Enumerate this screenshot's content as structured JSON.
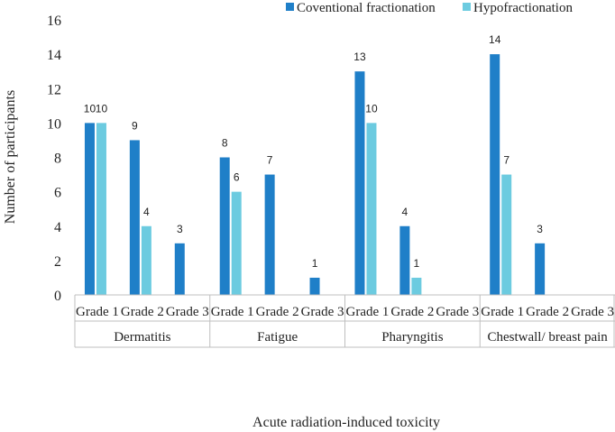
{
  "chart_data": {
    "type": "bar",
    "title": "",
    "xlabel": "Acute radiation-induced toxicity",
    "ylabel": "Number of participants",
    "ylim": [
      0,
      16
    ],
    "yticks": [
      "0",
      "2",
      "4",
      "6",
      "8",
      "10",
      "12",
      "14",
      "16"
    ],
    "grid": false,
    "legend_position": "top-right",
    "groups": [
      "Dermatitis",
      "Fatigue",
      "Pharyngitis",
      "Chestwall/ breast pain"
    ],
    "categories": [
      "Grade 1",
      "Grade 2",
      "Grade 3"
    ],
    "series": [
      {
        "name": "Coventional fractionation",
        "color": "#1f7fc8",
        "values": [
          [
            10,
            9,
            3
          ],
          [
            8,
            7,
            1
          ],
          [
            13,
            4,
            null
          ],
          [
            14,
            3,
            null
          ]
        ]
      },
      {
        "name": "Hypofractionation",
        "color": "#6ccbe0",
        "values": [
          [
            10,
            4,
            null
          ],
          [
            6,
            null,
            null
          ],
          [
            10,
            1,
            null
          ],
          [
            7,
            null,
            null
          ]
        ]
      }
    ]
  }
}
